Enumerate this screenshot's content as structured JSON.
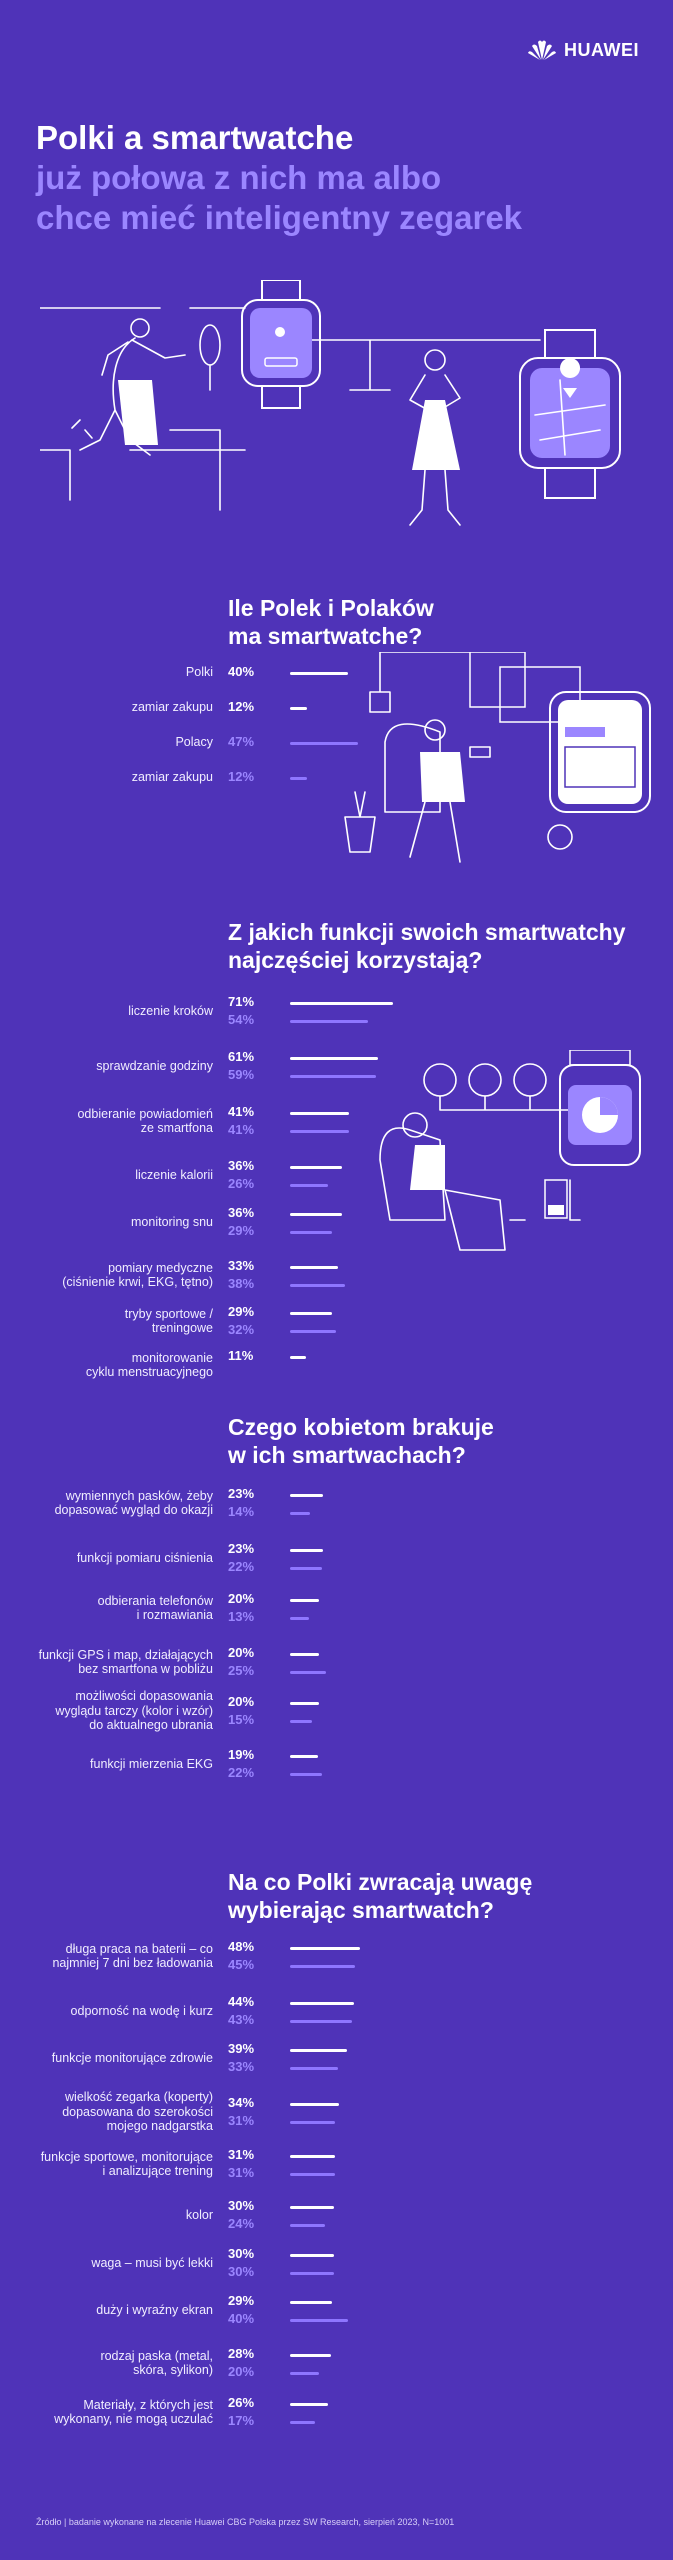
{
  "brand": {
    "name": "HUAWEI"
  },
  "hero": {
    "line1": "Polki a smartwatche",
    "line2": "już połowa z nich ma albo",
    "line3": "chce mieć inteligentny zegarek"
  },
  "colors": {
    "background": "#4f33b8",
    "accent": "#9b86ff",
    "women": "#ffffff",
    "men": "#8e76ff"
  },
  "chart_data": [
    {
      "type": "bar",
      "title": "Ile Polek i Polaków ma smartwatche?",
      "title_lines": [
        "Ile Polek i Polaków",
        "ma smartwatche?"
      ],
      "categories": [
        "Polki",
        "zamiar zakupu",
        "Polacy",
        "zamiar zakupu"
      ],
      "values": [
        40,
        12,
        47,
        12
      ],
      "labels": [
        "40%",
        "12%",
        "47%",
        "12%"
      ],
      "colors": [
        "women",
        "women",
        "men",
        "men"
      ]
    },
    {
      "type": "bar",
      "title": "Z jakich funkcji swoich smartwatchy najczęściej korzystają?",
      "title_lines": [
        "Z jakich funkcji swoich smartwatchy",
        "najczęściej korzystają?"
      ],
      "categories": [
        [
          "liczenie kroków"
        ],
        [
          "sprawdzanie godziny"
        ],
        [
          "odbieranie powiadomień",
          "ze smartfona"
        ],
        [
          "liczenie kalorii"
        ],
        [
          "monitoring snu"
        ],
        [
          "pomiary medyczne",
          "(ciśnienie krwi, EKG, tętno)"
        ],
        [
          "tryby sportowe /",
          "treningowe"
        ],
        [
          "monitorowanie",
          "cyklu menstruacyjnego"
        ]
      ],
      "series": [
        {
          "values": [
            71,
            61,
            41,
            36,
            36,
            33,
            29,
            11
          ],
          "labels": [
            "71%",
            "61%",
            "41%",
            "36%",
            "36%",
            "33%",
            "29%",
            "11%"
          ]
        },
        {
          "values": [
            54,
            59,
            41,
            26,
            29,
            38,
            32,
            null
          ],
          "labels": [
            "54%",
            "59%",
            "41%",
            "26%",
            "29%",
            "38%",
            "32%",
            ""
          ]
        }
      ]
    },
    {
      "type": "bar",
      "title": "Czego kobietom brakuje w ich smartwachach?",
      "title_lines": [
        "Czego kobietom brakuje",
        "w ich smartwachach?"
      ],
      "categories": [
        [
          "wymiennych pasków, żeby",
          "dopasować wygląd do okazji"
        ],
        [
          "funkcji pomiaru ciśnienia"
        ],
        [
          "odbierania telefonów",
          "i rozmawiania"
        ],
        [
          "funkcji GPS i map, działających",
          "bez smartfona w pobliżu"
        ],
        [
          "możliwości dopasowania",
          "wyglądu tarczy (kolor i wzór)",
          "do aktualnego ubrania"
        ],
        [
          "funkcji mierzenia EKG"
        ]
      ],
      "series": [
        {
          "values": [
            23,
            23,
            20,
            20,
            20,
            19
          ],
          "labels": [
            "23%",
            "23%",
            "20%",
            "20%",
            "20%",
            "19%"
          ]
        },
        {
          "values": [
            14,
            22,
            13,
            25,
            15,
            22
          ],
          "labels": [
            "14%",
            "22%",
            "13%",
            "25%",
            "15%",
            "22%"
          ]
        }
      ]
    },
    {
      "type": "bar",
      "title": "Na co Polki zwracają uwagę wybierając smartwatch?",
      "title_lines": [
        "Na co Polki zwracają uwagę",
        "wybierając smartwatch?"
      ],
      "categories": [
        [
          "długa praca na baterii – co",
          "najmniej 7 dni bez ładowania"
        ],
        [
          "odporność na wodę i kurz"
        ],
        [
          "funkcje monitorujące zdrowie"
        ],
        [
          "wielkość zegarka (koperty)",
          "dopasowana do szerokości",
          "mojego nadgarstka"
        ],
        [
          "funkcje sportowe, monitorujące",
          "i analizujące trening"
        ],
        [
          "kolor"
        ],
        [
          "waga – musi być lekki"
        ],
        [
          "duży i wyraźny ekran"
        ],
        [
          "rodzaj paska (metal,",
          "skóra, sylikon)"
        ],
        [
          "Materiały, z których jest",
          "wykonany, nie mogą uczulać"
        ]
      ],
      "series": [
        {
          "values": [
            48,
            44,
            39,
            34,
            31,
            30,
            30,
            29,
            28,
            26
          ],
          "labels": [
            "48%",
            "44%",
            "39%",
            "34%",
            "31%",
            "30%",
            "30%",
            "29%",
            "28%",
            "26%"
          ]
        },
        {
          "values": [
            45,
            43,
            33,
            31,
            31,
            24,
            30,
            40,
            20,
            17
          ],
          "labels": [
            "45%",
            "43%",
            "33%",
            "31%",
            "31%",
            "24%",
            "30%",
            "40%",
            "20%",
            "17%"
          ]
        }
      ]
    }
  ],
  "footer": "Źródło | badanie wykonane na zlecenie Huawei CBG Polska przez SW Research, sierpień 2023, N=1001"
}
